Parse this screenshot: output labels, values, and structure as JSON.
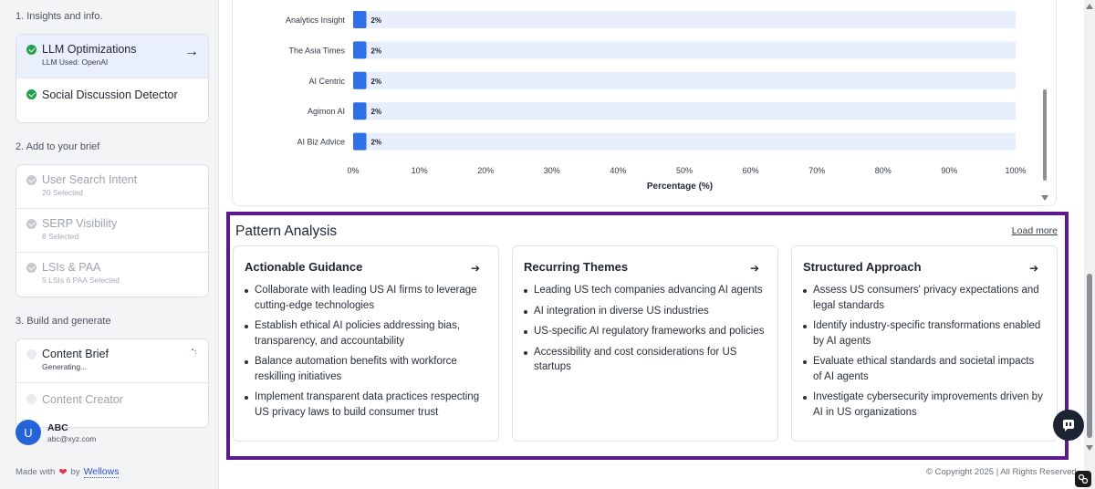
{
  "sidebar": {
    "sections": [
      {
        "label": "1. Insights and info.",
        "items": [
          {
            "title": "LLM Optimizations",
            "sub": "LLM Used: OpenAI",
            "state": "active"
          },
          {
            "title": "Social Discussion Detector",
            "sub": "",
            "state": "done"
          }
        ]
      },
      {
        "label": "2. Add to your brief",
        "items": [
          {
            "title": "User Search Intent",
            "sub": "20 Selected",
            "state": "disabled"
          },
          {
            "title": "SERP Visibility",
            "sub": "8 Selected",
            "state": "disabled"
          },
          {
            "title": "LSIs & PAA",
            "sub": "5 LSIs 6 PAA Selected",
            "state": "disabled"
          }
        ]
      },
      {
        "label": "3. Build and generate",
        "items": [
          {
            "title": "Content Brief",
            "sub": "Generating...",
            "state": "loading"
          },
          {
            "title": "Content Creator",
            "sub": "",
            "state": "pending"
          }
        ]
      }
    ],
    "user": {
      "initial": "U",
      "name": "ABC",
      "email": "abc@xyz.com"
    },
    "footer": {
      "made_with": "Made with",
      "by": "by",
      "brand": "Wellows"
    }
  },
  "chart_data": {
    "type": "bar",
    "orientation": "horizontal",
    "categories": [
      "Analytics Insight",
      "The Asia Times",
      "AI Centric",
      "Agimon AI",
      "AI Biz Advice"
    ],
    "values": [
      2,
      2,
      2,
      2,
      2
    ],
    "data_labels": [
      "2%",
      "2%",
      "2%",
      "2%",
      "2%"
    ],
    "xlabel": "Percentage (%)",
    "xlim": [
      0,
      100
    ],
    "x_ticks": [
      "0%",
      "10%",
      "20%",
      "30%",
      "40%",
      "50%",
      "60%",
      "70%",
      "80%",
      "90%",
      "100%"
    ],
    "colors": {
      "bar": "#2f6fe8",
      "track": "#e8eefb"
    }
  },
  "pattern": {
    "title": "Pattern Analysis",
    "load_more": "Load more",
    "cards": [
      {
        "title": "Actionable Guidance",
        "items": [
          "Collaborate with leading US AI firms to leverage cutting-edge technologies",
          "Establish ethical AI policies addressing bias, transparency, and accountability",
          "Balance automation benefits with workforce reskilling initiatives",
          "Implement transparent data practices respecting US privacy laws to build consumer trust"
        ]
      },
      {
        "title": "Recurring Themes",
        "items": [
          "Leading US tech companies advancing AI agents",
          "AI integration in diverse US industries",
          "US-specific AI regulatory frameworks and policies",
          "Accessibility and cost considerations for US startups"
        ]
      },
      {
        "title": "Structured Approach",
        "items": [
          "Assess US consumers' privacy expectations and legal standards",
          "Identify industry-specific transformations enabled by AI agents",
          "Evaluate ethical standards and societal impacts of AI agents",
          "Investigate cybersecurity improvements driven by AI in US organizations"
        ]
      }
    ]
  },
  "copyright": "© Copyright 2025 | All Rights Reserved",
  "colors": {
    "accent": "#2563d9",
    "frame": "#5c1a8f",
    "success": "#22a04b"
  }
}
